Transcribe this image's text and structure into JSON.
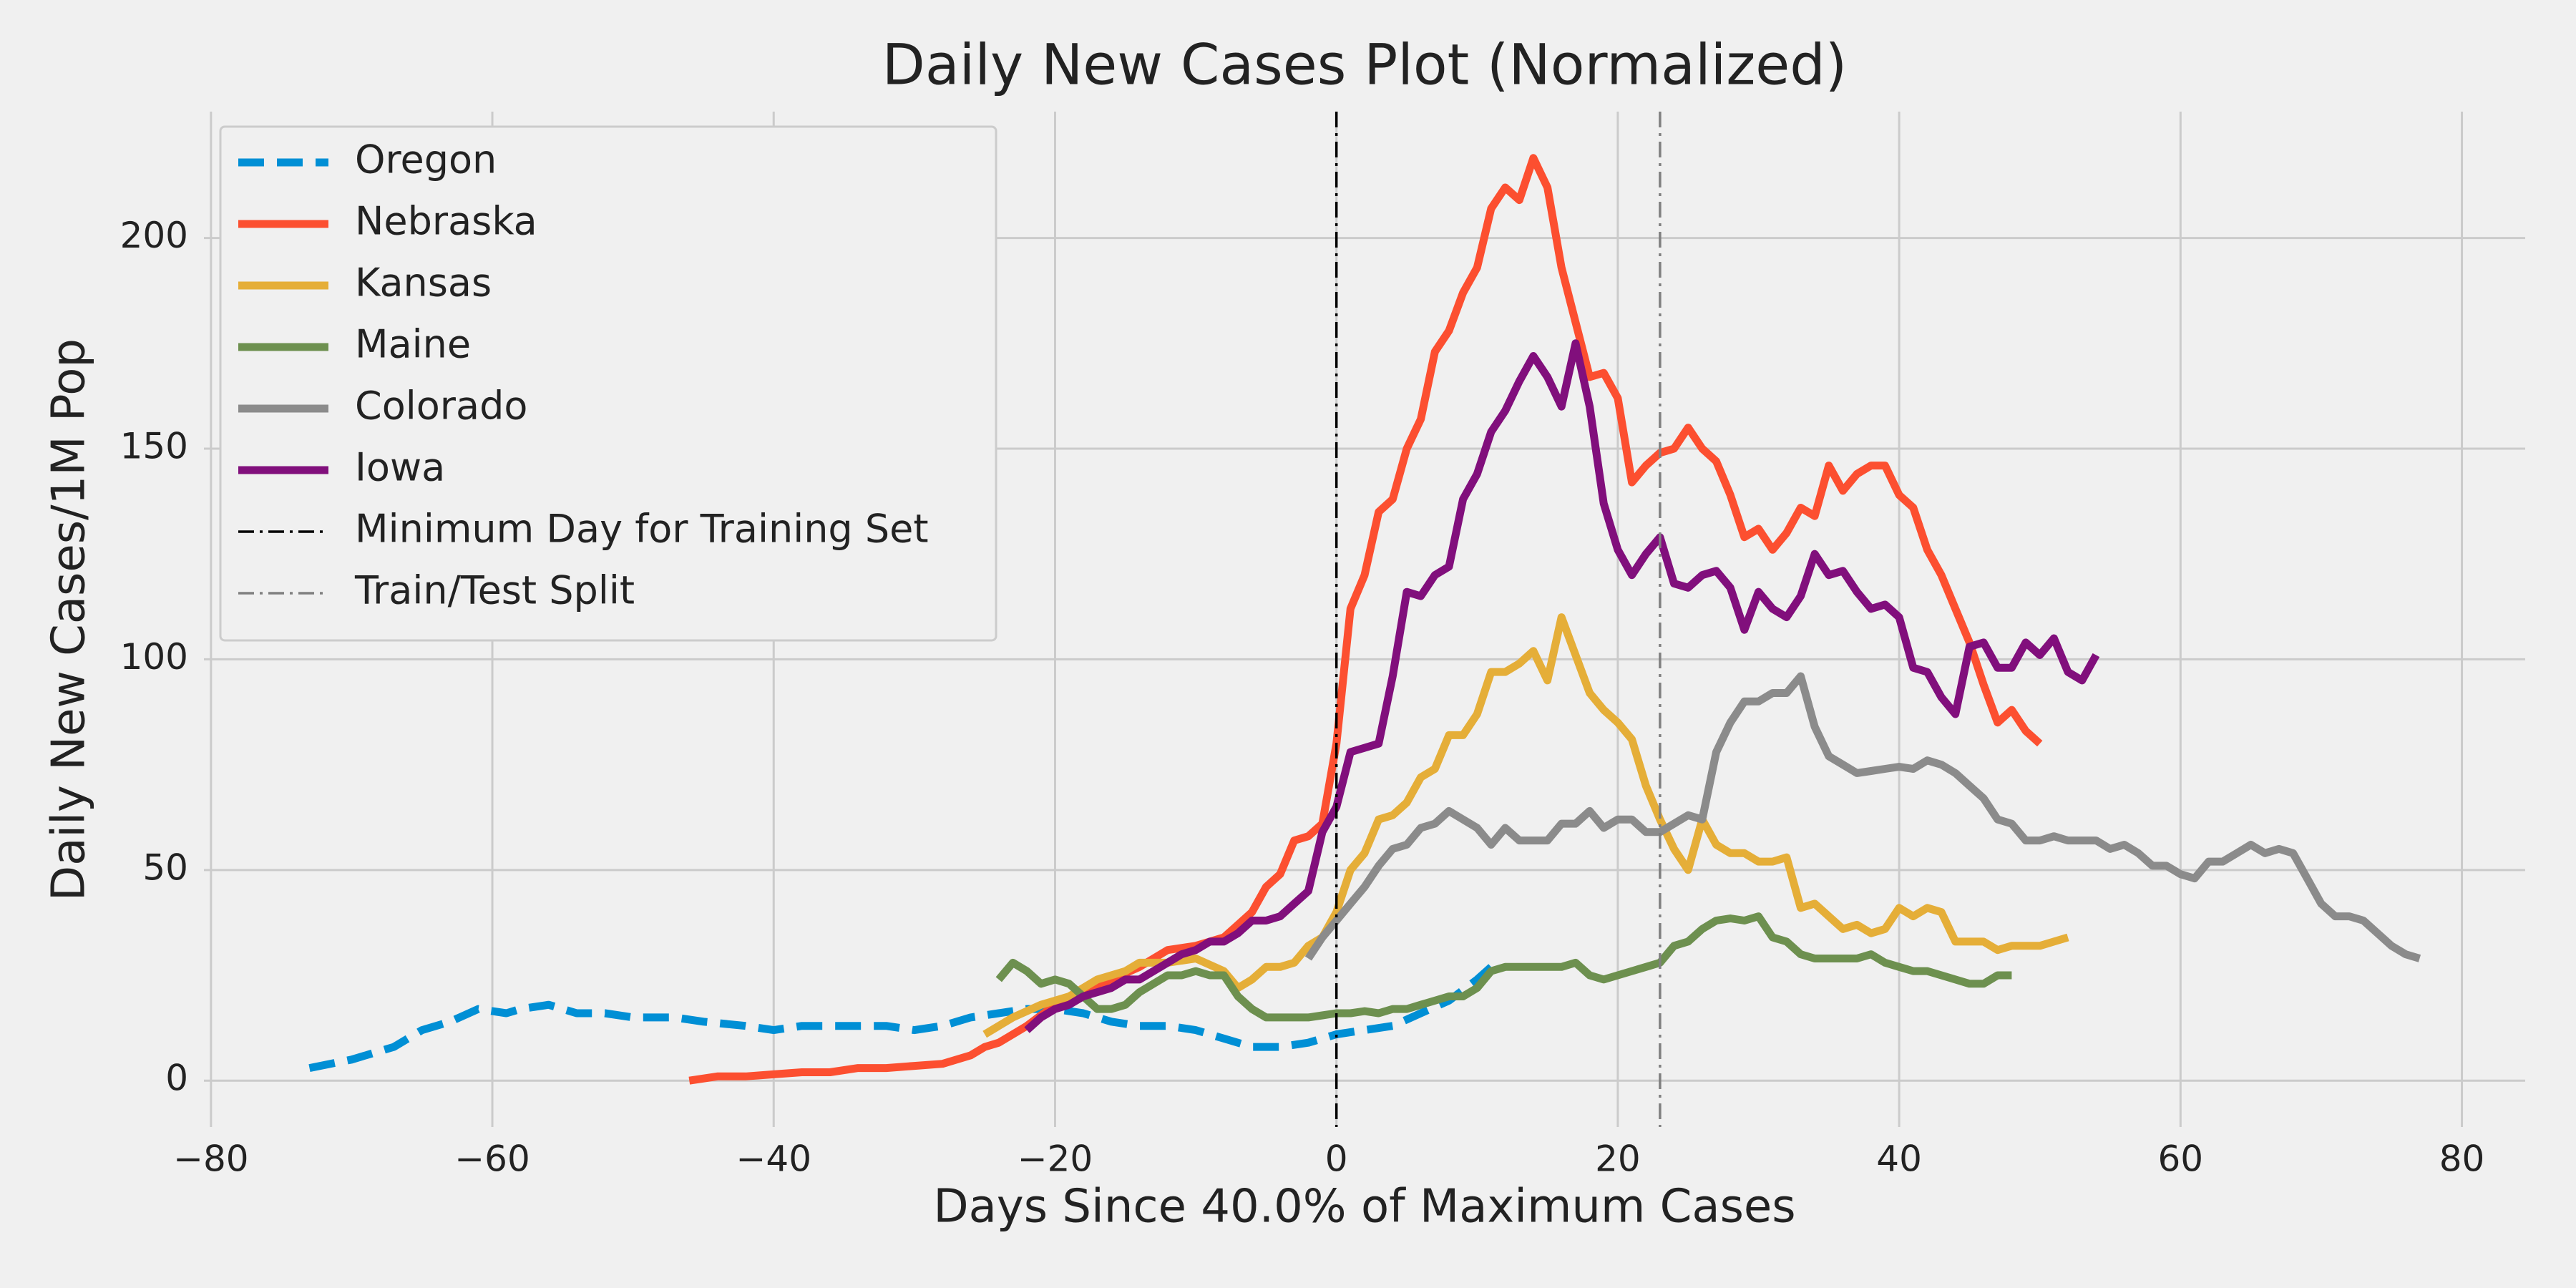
{
  "chart_data": {
    "type": "line",
    "title": "Daily New Cases Plot (Normalized)",
    "xlabel": "Days Since 40.0% of Maximum Cases",
    "ylabel": "Daily New Cases/1M Pop",
    "xlim": [
      -80.5,
      84.5
    ],
    "ylim": [
      -11,
      230
    ],
    "xticks": [
      {
        "value": -80,
        "label": "−80"
      },
      {
        "value": -60,
        "label": "−60"
      },
      {
        "value": -40,
        "label": "−40"
      },
      {
        "value": -20,
        "label": "−20"
      },
      0,
      20,
      40,
      60,
      80
    ],
    "yticks": [
      0,
      50,
      100,
      150,
      200
    ],
    "grid": true,
    "legend": "upper left",
    "series": [
      {
        "name": "Oregon",
        "color": "#008fd5",
        "linestyle": "dashed",
        "x": [
          -73,
          -70,
          -67,
          -65,
          -63,
          -61,
          -59,
          -58,
          -56,
          -54,
          -52,
          -50,
          -47,
          -45,
          -42,
          -40,
          -38,
          -35,
          -32,
          -30,
          -28,
          -26,
          -24,
          -22,
          -20,
          -18,
          -16,
          -14,
          -12,
          -10,
          -8,
          -6,
          -4,
          -2,
          0,
          2,
          4,
          6,
          8,
          10,
          11
        ],
        "values": [
          3,
          5,
          8,
          12,
          14,
          17,
          16,
          17,
          18,
          16,
          16,
          15,
          15,
          14,
          13,
          12,
          13,
          13,
          13,
          12,
          13,
          15,
          16,
          17,
          17,
          16,
          14,
          13,
          13,
          12,
          10,
          8,
          8,
          9,
          11,
          12,
          13,
          16,
          19,
          24,
          27
        ]
      },
      {
        "name": "Nebraska",
        "color": "#fc4f30",
        "linestyle": "solid",
        "x": [
          -46,
          -44,
          -42,
          -40,
          -38,
          -36,
          -34,
          -32,
          -30,
          -28,
          -26,
          -25,
          -24,
          -22,
          -20,
          -18,
          -16,
          -14,
          -12,
          -10,
          -8,
          -7,
          -6,
          -5,
          -4,
          -3,
          -2,
          -1,
          0,
          1,
          2,
          3,
          4,
          5,
          6,
          7,
          8,
          9,
          10,
          11,
          12,
          13,
          14,
          15,
          16,
          17,
          18,
          19,
          20,
          21,
          22,
          23,
          24,
          25,
          26,
          27,
          28,
          29,
          30,
          31,
          32,
          33,
          34,
          35,
          36,
          37,
          38,
          39,
          40,
          41,
          42,
          43,
          44,
          45,
          46,
          47,
          48,
          49,
          50
        ],
        "values": [
          0,
          1,
          1,
          1.5,
          2,
          2,
          3,
          3,
          3.5,
          4,
          6,
          8,
          9,
          13,
          18,
          21,
          24,
          27,
          31,
          32,
          34,
          37,
          40,
          46,
          49,
          57,
          58,
          61,
          80,
          112,
          120,
          135,
          138,
          150,
          157,
          173,
          178,
          187,
          193,
          207,
          212,
          209,
          219,
          212,
          193,
          180,
          167,
          168,
          162,
          142,
          146,
          149,
          150,
          155,
          150,
          147,
          139,
          129,
          131,
          126,
          130,
          136,
          134,
          146,
          140,
          144,
          146,
          146,
          139,
          136,
          126,
          120,
          112,
          104,
          94,
          85,
          88,
          83,
          80
        ]
      },
      {
        "name": "Kansas",
        "color": "#e5ae38",
        "linestyle": "solid",
        "x": [
          -25,
          -23,
          -21,
          -19,
          -17,
          -15,
          -14,
          -12,
          -10,
          -8,
          -7,
          -6,
          -5,
          -4,
          -3,
          -2,
          -1,
          0,
          1,
          2,
          3,
          4,
          5,
          6,
          7,
          8,
          9,
          10,
          11,
          12,
          13,
          14,
          15,
          16,
          17,
          18,
          19,
          20,
          21,
          22,
          23,
          24,
          25,
          26,
          27,
          28,
          29,
          30,
          31,
          32,
          33,
          34,
          35,
          36,
          37,
          38,
          39,
          40,
          41,
          42,
          43,
          44,
          45,
          46,
          47,
          48,
          49,
          50,
          51,
          52
        ],
        "values": [
          11,
          15,
          18,
          20,
          24,
          26,
          28,
          28,
          29,
          26,
          22,
          24,
          27,
          27,
          28,
          32,
          34,
          40,
          50,
          54,
          62,
          63,
          66,
          72,
          74,
          82,
          82,
          87,
          97,
          97,
          99,
          102,
          95,
          110,
          101,
          92,
          88,
          85,
          81,
          70,
          62,
          55,
          50,
          62,
          56,
          54,
          54,
          52,
          52,
          53,
          41,
          42,
          39,
          36,
          37,
          35,
          36,
          41,
          39,
          41,
          40,
          33,
          33,
          33,
          31,
          32,
          32,
          32,
          33,
          34
        ]
      },
      {
        "name": "Maine",
        "color": "#6d904f",
        "linestyle": "solid",
        "x": [
          -24,
          -23,
          -22,
          -21,
          -20,
          -19,
          -18,
          -17,
          -16,
          -15,
          -14,
          -13,
          -12,
          -11,
          -10,
          -9,
          -8,
          -7,
          -6,
          -5,
          -4,
          -3,
          -2,
          -1,
          0,
          1,
          2,
          3,
          4,
          5,
          6,
          7,
          8,
          9,
          10,
          11,
          12,
          13,
          14,
          15,
          16,
          17,
          18,
          19,
          20,
          21,
          22,
          23,
          24,
          25,
          26,
          27,
          28,
          29,
          30,
          31,
          32,
          33,
          34,
          35,
          36,
          37,
          38,
          39,
          40,
          41,
          42,
          43,
          44,
          45,
          46,
          47,
          48
        ],
        "values": [
          24,
          28,
          26,
          23,
          24,
          23,
          20,
          17,
          17,
          18,
          21,
          23,
          25,
          25,
          26,
          25,
          25,
          20,
          17,
          15,
          15,
          15,
          15,
          15.5,
          16,
          16,
          16.5,
          16,
          17,
          17,
          18,
          19,
          20,
          20,
          22,
          26,
          27,
          27,
          27,
          27,
          27,
          28,
          25,
          24,
          25,
          26,
          27,
          28,
          32,
          33,
          36,
          38,
          38.5,
          38,
          39,
          34,
          33,
          30,
          29,
          29,
          29,
          29,
          30,
          28,
          27,
          26,
          26,
          25,
          24,
          23,
          23,
          25,
          25
        ]
      },
      {
        "name": "Colorado",
        "color": "#8b8b8b",
        "linestyle": "solid",
        "x": [
          -2,
          -1,
          0,
          1,
          2,
          3,
          4,
          5,
          6,
          7,
          8,
          9,
          10,
          11,
          12,
          13,
          14,
          15,
          16,
          17,
          18,
          19,
          20,
          21,
          22,
          23,
          24,
          25,
          26,
          27,
          28,
          29,
          30,
          31,
          32,
          33,
          34,
          35,
          36,
          37,
          38,
          39,
          40,
          41,
          42,
          43,
          44,
          45,
          46,
          47,
          48,
          49,
          50,
          51,
          52,
          53,
          54,
          55,
          56,
          57,
          58,
          59,
          60,
          61,
          62,
          63,
          64,
          65,
          66,
          67,
          68,
          69,
          70,
          71,
          72,
          73,
          74,
          75,
          76,
          77
        ],
        "values": [
          29,
          34,
          38,
          42,
          46,
          51,
          55,
          56,
          60,
          61,
          64,
          62,
          60,
          56,
          60,
          57,
          57,
          57,
          61,
          61,
          64,
          60,
          62,
          62,
          59,
          59,
          61,
          63,
          62,
          78,
          85,
          90,
          90,
          92,
          92,
          96,
          84,
          77,
          75,
          73,
          73.5,
          74,
          74.5,
          74,
          76,
          75,
          73,
          70,
          67,
          62,
          61,
          57,
          57,
          58,
          57,
          57,
          57,
          55,
          56,
          54,
          51,
          51,
          49,
          48,
          52,
          52,
          54,
          56,
          54,
          55,
          54,
          48,
          42,
          39,
          39,
          38,
          35,
          32,
          30,
          29
        ]
      },
      {
        "name": "Iowa",
        "color": "#810f7c",
        "linestyle": "solid",
        "x": [
          -22,
          -21,
          -20,
          -19,
          -18,
          -17,
          -16,
          -15,
          -14,
          -13,
          -12,
          -11,
          -10,
          -9,
          -8,
          -7,
          -6,
          -5,
          -4,
          -3,
          -2,
          -1,
          0,
          1,
          2,
          3,
          4,
          5,
          6,
          7,
          8,
          9,
          10,
          11,
          12,
          13,
          14,
          15,
          16,
          17,
          18,
          19,
          20,
          21,
          22,
          23,
          24,
          25,
          26,
          27,
          28,
          29,
          30,
          31,
          32,
          33,
          34,
          35,
          36,
          37,
          38,
          39,
          40,
          41,
          42,
          43,
          44,
          45,
          46,
          47,
          48,
          49,
          50,
          51,
          52,
          53,
          54
        ],
        "values": [
          12,
          15,
          17,
          18,
          20,
          21,
          22,
          24,
          24,
          26,
          28,
          30,
          31,
          33,
          33,
          35,
          38,
          38,
          39,
          42,
          45,
          59,
          65,
          78,
          79,
          80,
          96,
          116,
          115,
          120,
          122,
          138,
          144,
          154,
          159,
          166,
          172,
          167,
          160,
          175,
          160,
          137,
          126,
          120,
          125,
          129,
          118,
          117,
          120,
          121,
          117,
          107,
          116,
          112,
          110,
          115,
          125,
          120,
          121,
          116,
          112,
          113,
          110,
          98,
          97,
          91,
          87,
          103,
          104,
          98,
          98,
          104,
          101,
          105,
          97,
          95,
          101
        ]
      }
    ],
    "vlines": [
      {
        "name": "Minimum Day for Training Set",
        "x": 0,
        "color": "#000000",
        "linestyle": "dashdot"
      },
      {
        "name": "Train/Test Split",
        "x": 23,
        "color": "#808080",
        "linestyle": "dashdot"
      }
    ]
  }
}
